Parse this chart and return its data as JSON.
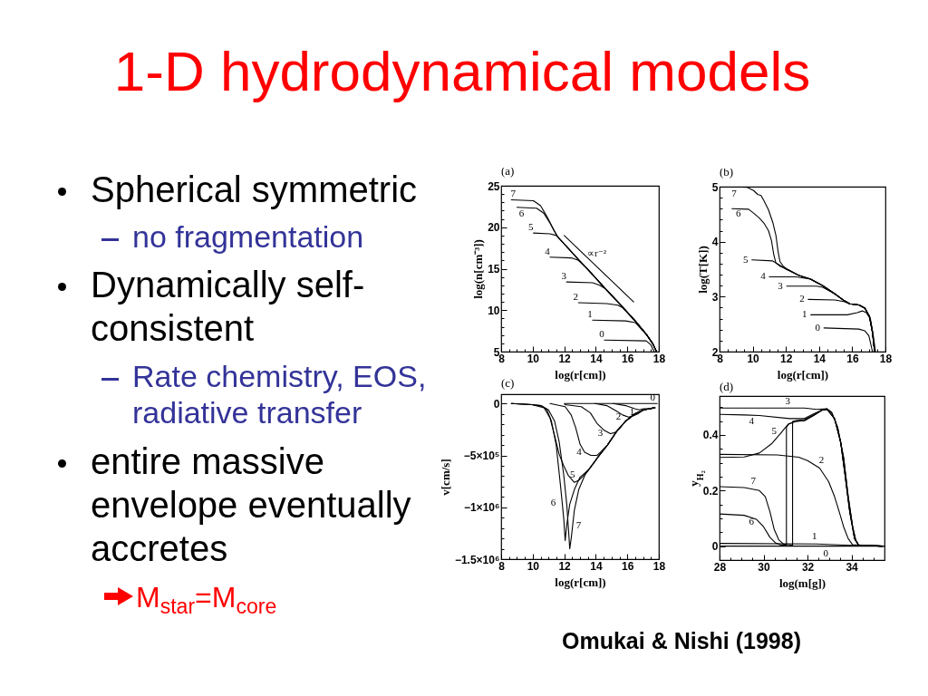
{
  "chart_data": [
    {
      "type": "other",
      "title": "1-D hydrodynamical models",
      "annotations": [
        "Spherical symmetric",
        "no fragmentation",
        "Dynamically self-consistent",
        "Rate chemistry, EOS, radiative transfer",
        "entire massive envelope eventually accretes",
        "M$_{star}$=M$_{core}$",
        "Omukai & Nishi (1998)"
      ]
    },
    {
      "type": "line",
      "title": "(a)",
      "xlabel": "log(r[cm])",
      "ylabel": "log(n[cm⁻³])",
      "xlim": [
        8,
        18
      ],
      "ylim": [
        5,
        25
      ],
      "xticks": [
        8,
        {
          "value": 8.5,
          "label": null
        },
        {
          "value": 9,
          "label": null
        },
        {
          "value": 9.5,
          "label": null
        },
        10,
        {
          "value": 10.5,
          "label": null
        },
        {
          "value": 11,
          "label": null
        },
        {
          "value": 11.5,
          "label": null
        },
        12,
        {
          "value": 12.5,
          "label": null
        },
        {
          "value": 13,
          "label": null
        },
        {
          "value": 13.5,
          "label": null
        },
        14,
        {
          "value": 14.5,
          "label": null
        },
        {
          "value": 15,
          "label": null
        },
        {
          "value": 15.5,
          "label": null
        },
        16,
        {
          "value": 16.5,
          "label": null
        },
        {
          "value": 17,
          "label": null
        },
        {
          "value": 17.5,
          "label": null
        },
        18
      ],
      "yticks": [
        5,
        {
          "value": 6,
          "label": null
        },
        {
          "value": 7,
          "label": null
        },
        {
          "value": 8,
          "label": null
        },
        {
          "value": 9,
          "label": null
        },
        10,
        {
          "value": 11,
          "label": null
        },
        {
          "value": 12,
          "label": null
        },
        {
          "value": 13,
          "label": null
        },
        {
          "value": 14,
          "label": null
        },
        15,
        {
          "value": 16,
          "label": null
        },
        {
          "value": 17,
          "label": null
        },
        {
          "value": 18,
          "label": null
        },
        {
          "value": 19,
          "label": null
        },
        20,
        {
          "value": 21,
          "label": null
        },
        {
          "value": 22,
          "label": null
        },
        {
          "value": 23,
          "label": null
        },
        {
          "value": 24,
          "label": null
        },
        25
      ],
      "series": [
        {
          "name": "0",
          "color": "#000000",
          "x": [
            14.55,
            17.2,
            17.5,
            17.7
          ],
          "values": [
            6.4,
            6.3,
            5.8,
            5.0
          ]
        },
        {
          "name": "1",
          "color": "#000000",
          "x": [
            13.8,
            15.9,
            16.5,
            17.2,
            17.6,
            17.85
          ],
          "values": [
            8.8,
            8.7,
            8.5,
            7.1,
            6.0,
            5.0
          ]
        },
        {
          "name": "2",
          "color": "#000000",
          "x": [
            12.9,
            14.7,
            15.4,
            15.7,
            16.5,
            17.2,
            17.6,
            17.85
          ],
          "values": [
            10.9,
            10.8,
            10.6,
            10.3,
            8.7,
            7.1,
            6.0,
            5.0
          ]
        },
        {
          "name": "3",
          "color": "#000000",
          "x": [
            12.15,
            13.8,
            14.25,
            14.6,
            15.4,
            16.5,
            17.2,
            17.6,
            17.85
          ],
          "values": [
            13.4,
            13.3,
            13.0,
            12.6,
            11.0,
            8.7,
            7.1,
            6.0,
            5.0
          ]
        },
        {
          "name": "4",
          "color": "#000000",
          "x": [
            11.1,
            12.45,
            12.9,
            13.5,
            14.6,
            15.4,
            16.5,
            17.2,
            17.6,
            17.85
          ],
          "values": [
            16.4,
            16.3,
            16.0,
            14.9,
            12.6,
            11.0,
            8.7,
            7.1,
            6.0,
            5.0
          ]
        },
        {
          "name": "5",
          "color": "#000000",
          "x": [
            10.05,
            11.1,
            11.5,
            12.0,
            12.9,
            13.5,
            14.6,
            15.4,
            16.5,
            17.2,
            17.6,
            17.85
          ],
          "values": [
            19.3,
            19.2,
            19.0,
            18.0,
            16.1,
            14.9,
            12.6,
            11.0,
            8.7,
            7.1,
            6.0,
            5.0
          ]
        },
        {
          "name": "6",
          "color": "#000000",
          "x": [
            9.0,
            10.25,
            10.7,
            11.1,
            11.35,
            11.6,
            12.0,
            12.9,
            13.5,
            14.6,
            15.4,
            16.5,
            17.2,
            17.6,
            17.85
          ],
          "values": [
            22.4,
            22.3,
            21.7,
            20.5,
            19.6,
            18.8,
            18.0,
            16.1,
            14.9,
            12.6,
            11.0,
            8.7,
            7.1,
            6.0,
            5.0
          ]
        },
        {
          "name": "7",
          "color": "#000000",
          "x": [
            8.65,
            10.05,
            10.5,
            10.9,
            11.2,
            11.45,
            11.6,
            12.0,
            12.9,
            13.5,
            14.6,
            15.4,
            16.5,
            17.2,
            17.6,
            17.85
          ],
          "values": [
            23.3,
            23.2,
            22.6,
            21.3,
            20.2,
            19.3,
            18.8,
            18.0,
            16.1,
            14.9,
            12.6,
            11.0,
            8.7,
            7.1,
            6.0,
            5.0
          ]
        },
        {
          "name": "∝r⁻²",
          "color": "#000000",
          "x": [
            12,
            16.4
          ],
          "values": [
            19,
            11
          ]
        }
      ]
    },
    {
      "type": "line",
      "title": "(b)",
      "xlabel": "log(r[cm])",
      "ylabel": "log(T[K])",
      "xlim": [
        8,
        18
      ],
      "ylim": [
        2,
        5
      ],
      "xticks": [
        8,
        {
          "value": 8.5,
          "label": null
        },
        {
          "value": 9,
          "label": null
        },
        {
          "value": 9.5,
          "label": null
        },
        10,
        {
          "value": 10.5,
          "label": null
        },
        {
          "value": 11,
          "label": null
        },
        {
          "value": 11.5,
          "label": null
        },
        12,
        {
          "value": 12.5,
          "label": null
        },
        {
          "value": 13,
          "label": null
        },
        {
          "value": 13.5,
          "label": null
        },
        14,
        {
          "value": 14.5,
          "label": null
        },
        {
          "value": 15,
          "label": null
        },
        {
          "value": 15.5,
          "label": null
        },
        16,
        {
          "value": 16.5,
          "label": null
        },
        {
          "value": 17,
          "label": null
        },
        {
          "value": 17.5,
          "label": null
        },
        18
      ],
      "yticks": [
        2,
        {
          "value": 2.2,
          "label": null
        },
        {
          "value": 2.4,
          "label": null
        },
        {
          "value": 2.6,
          "label": null
        },
        {
          "value": 2.8,
          "label": null
        },
        3,
        {
          "value": 3.2,
          "label": null
        },
        {
          "value": 3.4,
          "label": null
        },
        {
          "value": 3.6,
          "label": null
        },
        {
          "value": 3.8,
          "label": null
        },
        4,
        {
          "value": 4.2,
          "label": null
        },
        {
          "value": 4.4,
          "label": null
        },
        {
          "value": 4.6,
          "label": null
        },
        {
          "value": 4.8,
          "label": null
        },
        5
      ],
      "series": [
        {
          "name": "0",
          "color": "#000000",
          "x": [
            14.3,
            16.4,
            16.75,
            17.0,
            17.13,
            17.22
          ],
          "values": [
            2.43,
            2.41,
            2.38,
            2.29,
            2.12,
            2.0
          ]
        },
        {
          "name": "1",
          "color": "#000000",
          "x": [
            13.5,
            15.7,
            16.3,
            16.6,
            16.85,
            17.1,
            17.27,
            17.4
          ],
          "values": [
            2.67,
            2.67,
            2.71,
            2.74,
            2.71,
            2.59,
            2.29,
            2.0
          ]
        },
        {
          "name": "2",
          "color": "#000000",
          "x": [
            13.35,
            14.95,
            15.5,
            15.85,
            16.4,
            16.76,
            17.04,
            17.22,
            17.35
          ],
          "values": [
            2.95,
            2.94,
            2.91,
            2.87,
            2.85,
            2.79,
            2.64,
            2.35,
            2.0
          ]
        },
        {
          "name": "3",
          "color": "#000000",
          "x": [
            12.05,
            13.85,
            14.22,
            14.4,
            14.95,
            15.5,
            15.85,
            16.4,
            16.76,
            17.04,
            17.22,
            17.35
          ],
          "values": [
            3.19,
            3.19,
            3.17,
            3.14,
            3.05,
            2.93,
            2.87,
            2.85,
            2.79,
            2.64,
            2.35,
            2.0
          ]
        },
        {
          "name": "4",
          "color": "#000000",
          "x": [
            11.0,
            12.6,
            13.49,
            14.22,
            14.95,
            15.5,
            15.85,
            16.4,
            16.76,
            17.04,
            17.22,
            17.35
          ],
          "values": [
            3.36,
            3.36,
            3.32,
            3.2,
            3.05,
            2.93,
            2.87,
            2.85,
            2.79,
            2.64,
            2.35,
            2.0
          ]
        },
        {
          "name": "5",
          "color": "#000000",
          "x": [
            9.95,
            11.2,
            11.6,
            12.0,
            12.76,
            13.49,
            14.22,
            14.95,
            15.5,
            15.85,
            16.4,
            16.76,
            17.04,
            17.22,
            17.35
          ],
          "values": [
            3.67,
            3.65,
            3.58,
            3.5,
            3.39,
            3.32,
            3.2,
            3.05,
            2.93,
            2.87,
            2.85,
            2.79,
            2.64,
            2.35,
            2.0
          ]
        },
        {
          "name": "6",
          "color": "#000000",
          "x": [
            8.75,
            9.75,
            10.05,
            10.4,
            10.67,
            10.95,
            11.13,
            11.27,
            11.4,
            11.67,
            12.13,
            12.76,
            13.49,
            14.22,
            14.95,
            15.5,
            15.85,
            16.4,
            16.76,
            17.04,
            17.22,
            17.35
          ],
          "values": [
            4.6,
            4.59,
            4.52,
            4.43,
            4.34,
            4.2,
            4.02,
            3.76,
            3.61,
            3.55,
            3.49,
            3.39,
            3.32,
            3.2,
            3.05,
            2.93,
            2.87,
            2.85,
            2.79,
            2.64,
            2.35,
            2.0
          ]
        },
        {
          "name": "7",
          "color": "#000000",
          "x": [
            8.6,
            9.65,
            10.05,
            10.3,
            10.5,
            10.67,
            10.95,
            11.22,
            11.4,
            11.53,
            11.64,
            11.85,
            12.13,
            12.76,
            13.49,
            14.22,
            14.95,
            15.5,
            15.85,
            16.4,
            16.76,
            17.04,
            17.22,
            17.35
          ],
          "values": [
            5.0,
            4.99,
            4.93,
            4.86,
            4.84,
            4.75,
            4.58,
            4.34,
            4.11,
            3.82,
            3.64,
            3.55,
            3.49,
            3.39,
            3.32,
            3.2,
            3.05,
            2.93,
            2.87,
            2.85,
            2.79,
            2.64,
            2.35,
            2.0
          ]
        }
      ]
    },
    {
      "type": "line",
      "title": "(c)",
      "xlabel": "log(r[cm])",
      "ylabel": "v[cm/s]",
      "xlim": [
        8,
        18
      ],
      "ylim": [
        -1500000,
        90000
      ],
      "xticks": [
        8,
        {
          "value": 8.5,
          "label": null
        },
        {
          "value": 9,
          "label": null
        },
        {
          "value": 9.5,
          "label": null
        },
        10,
        {
          "value": 10.5,
          "label": null
        },
        {
          "value": 11,
          "label": null
        },
        {
          "value": 11.5,
          "label": null
        },
        12,
        {
          "value": 12.5,
          "label": null
        },
        {
          "value": 13,
          "label": null
        },
        {
          "value": 13.5,
          "label": null
        },
        14,
        {
          "value": 14.5,
          "label": null
        },
        {
          "value": 15,
          "label": null
        },
        {
          "value": 15.5,
          "label": null
        },
        16,
        {
          "value": 16.5,
          "label": null
        },
        {
          "value": 17,
          "label": null
        },
        {
          "value": 17.5,
          "label": null
        },
        18
      ],
      "yticks": [
        {
          "value": -1500000,
          "label": "−1.5×10⁶"
        },
        {
          "value": -1400000,
          "label": null
        },
        {
          "value": -1300000,
          "label": null
        },
        {
          "value": -1200000,
          "label": null
        },
        {
          "value": -1100000,
          "label": null
        },
        {
          "value": -1000000,
          "label": "−1×10⁶"
        },
        {
          "value": -900000,
          "label": null
        },
        {
          "value": -800000,
          "label": null
        },
        {
          "value": -700000,
          "label": null
        },
        {
          "value": -600000,
          "label": null
        },
        {
          "value": -500000,
          "label": "−5×10⁵"
        },
        {
          "value": -400000,
          "label": null
        },
        {
          "value": -300000,
          "label": null
        },
        {
          "value": -200000,
          "label": null
        },
        {
          "value": -100000,
          "label": null
        },
        0
      ],
      "series": [
        {
          "name": "0",
          "color": "#000000",
          "x": [
            12.0,
            17.9
          ],
          "values": [
            0,
            0
          ]
        },
        {
          "name": "1",
          "color": "#000000",
          "x": [
            15.1,
            15.9,
            16.47,
            16.74,
            17.04,
            17.4,
            17.75
          ],
          "values": [
            0,
            -20000,
            -50000,
            -60000,
            -50000,
            -50000,
            -40000
          ]
        },
        {
          "name": "2",
          "color": "#000000",
          "x": [
            13.95,
            14.7,
            15.28,
            15.7,
            16.08,
            16.36,
            16.66,
            17.04,
            17.75
          ],
          "values": [
            0,
            -20000,
            -70000,
            -110000,
            -130000,
            -120000,
            -100000,
            -60000,
            -40000
          ]
        },
        {
          "name": "3",
          "color": "#000000",
          "x": [
            12.03,
            13.08,
            13.66,
            14.07,
            14.55,
            14.93,
            15.21,
            15.5,
            15.89,
            16.47,
            17.04,
            17.75
          ],
          "values": [
            -10000,
            -30000,
            -90000,
            -190000,
            -260000,
            -290000,
            -280000,
            -240000,
            -170000,
            -100000,
            -60000,
            -40000
          ]
        },
        {
          "name": "4",
          "color": "#000000",
          "x": [
            11.1,
            12.06,
            12.44,
            12.72,
            13.0,
            13.29,
            13.69,
            14.07,
            14.36,
            14.74,
            15.32,
            15.89,
            16.47,
            17.04,
            17.75
          ],
          "values": [
            0,
            -30000,
            -110000,
            -230000,
            -390000,
            -470000,
            -500000,
            -500000,
            -460000,
            -400000,
            -270000,
            -170000,
            -100000,
            -60000,
            -40000
          ]
        },
        {
          "name": "5",
          "color": "#000000",
          "x": [
            8.65,
            9.95,
            10.72,
            11.1,
            11.39,
            11.68,
            11.97,
            12.25,
            12.64,
            12.92,
            13.2,
            13.59,
            14.17,
            14.74,
            15.32,
            15.89,
            16.47,
            17.04,
            17.75
          ],
          "values": [
            0,
            -10000,
            -40000,
            -140000,
            -310000,
            -490000,
            -600000,
            -690000,
            -760000,
            -740000,
            -700000,
            -630000,
            -510000,
            -400000,
            -270000,
            -170000,
            -100000,
            -60000,
            -40000
          ]
        },
        {
          "name": "6",
          "color": "#000000",
          "x": [
            8.65,
            9.95,
            10.53,
            10.9,
            11.19,
            11.49,
            11.77,
            11.97,
            12.06,
            12.16,
            12.35,
            12.64,
            13.0,
            13.38,
            13.59,
            14.17,
            14.74,
            15.32,
            15.89,
            16.47,
            17.04,
            17.75
          ],
          "values": [
            0,
            -10000,
            -20000,
            -60000,
            -170000,
            -400000,
            -800000,
            -1110000,
            -1320000,
            -1170000,
            -970000,
            -830000,
            -710000,
            -660000,
            -630000,
            -510000,
            -400000,
            -270000,
            -170000,
            -100000,
            -60000,
            -40000
          ]
        },
        {
          "name": "7",
          "color": "#000000",
          "x": [
            8.65,
            9.95,
            10.53,
            11.0,
            11.39,
            11.68,
            11.97,
            12.16,
            12.25,
            12.35,
            12.45,
            12.64,
            12.92,
            13.31,
            13.79,
            14.17,
            14.74,
            15.32,
            15.89,
            16.47,
            17.04,
            17.75
          ],
          "values": [
            0,
            -10000,
            -20000,
            -60000,
            -170000,
            -370000,
            -690000,
            -970000,
            -1170000,
            -1400000,
            -1290000,
            -1030000,
            -830000,
            -690000,
            -590000,
            -510000,
            -400000,
            -270000,
            -170000,
            -100000,
            -60000,
            -40000
          ]
        }
      ]
    },
    {
      "type": "line",
      "title": "(d)",
      "xlabel": "log(m[g])",
      "ylabel": "y$_{H₂}$",
      "xlim": [
        28,
        35.5
      ],
      "ylim": [
        -0.05,
        0.54
      ],
      "xticks": [
        28,
        {
          "value": 28.5,
          "label": null
        },
        {
          "value": 29,
          "label": null
        },
        {
          "value": 29.5,
          "label": null
        },
        30,
        {
          "value": 30.5,
          "label": null
        },
        {
          "value": 31,
          "label": null
        },
        {
          "value": 31.5,
          "label": null
        },
        32,
        {
          "value": 32.5,
          "label": null
        },
        {
          "value": 33,
          "label": null
        },
        {
          "value": 33.5,
          "label": null
        },
        34,
        {
          "value": 34.5,
          "label": null
        },
        {
          "value": 35,
          "label": null
        }
      ],
      "yticks": [
        {
          "value": -0.05,
          "label": null
        },
        0,
        {
          "value": 0.05,
          "label": null
        },
        {
          "value": 0.1,
          "label": null
        },
        {
          "value": 0.15,
          "label": null
        },
        0.2,
        {
          "value": 0.25,
          "label": null
        },
        {
          "value": 0.3,
          "label": null
        },
        {
          "value": 0.35,
          "label": null
        },
        0.4,
        {
          "value": 0.45,
          "label": null
        },
        {
          "value": 0.5,
          "label": null
        }
      ],
      "series": [
        {
          "name": "0",
          "color": "#000000",
          "x": [
            28,
            32.5,
            35.5
          ],
          "values": [
            0,
            0,
            0
          ]
        },
        {
          "name": "1",
          "color": "#000000",
          "x": [
            28,
            32.4,
            34.05,
            35.5
          ],
          "values": [
            0.01,
            0.008,
            0.003,
            0
          ]
        },
        {
          "name": "2",
          "color": "#000000",
          "x": [
            28,
            30.63,
            31.6,
            32.0,
            32.55,
            32.96,
            33.23,
            33.44,
            33.64,
            33.85,
            34.05,
            35.4
          ],
          "values": [
            0.33,
            0.328,
            0.32,
            0.308,
            0.281,
            0.232,
            0.178,
            0.124,
            0.07,
            0.027,
            0.005,
            0
          ]
        },
        {
          "name": "3",
          "color": "#000000",
          "x": [
            28,
            31.1,
            31.86,
            32.41,
            32.89,
            33.1,
            33.37,
            33.64,
            33.85,
            34.05,
            34.19,
            34.33,
            35.4
          ],
          "values": [
            0.497,
            0.497,
            0.497,
            0.492,
            0.494,
            0.481,
            0.427,
            0.319,
            0.178,
            0.07,
            0.022,
            0.003,
            0
          ]
        },
        {
          "name": "4",
          "color": "#000000",
          "x": [
            28,
            29.12,
            29.81,
            31.18,
            31.86,
            32.27,
            32.68,
            32.89,
            33.1,
            33.37,
            33.64,
            33.85,
            34.05,
            34.19,
            34.33,
            35.4
          ],
          "values": [
            0.474,
            0.472,
            0.47,
            0.459,
            0.459,
            0.476,
            0.49,
            0.494,
            0.481,
            0.427,
            0.319,
            0.178,
            0.07,
            0.022,
            0.003,
            0
          ]
        },
        {
          "name": "5",
          "color": "#000000",
          "x": [
            28,
            29.12,
            29.81,
            30.36,
            30.77,
            31.11,
            31.45,
            31.86,
            32.27,
            32.68,
            32.89,
            33.23,
            33.51,
            33.71,
            33.92,
            34.14,
            34.33,
            35.4
          ],
          "values": [
            0.319,
            0.321,
            0.335,
            0.368,
            0.405,
            0.438,
            0.449,
            0.451,
            0.47,
            0.49,
            0.492,
            0.459,
            0.373,
            0.254,
            0.124,
            0.027,
            0.003,
            0
          ]
        },
        {
          "name": "6",
          "color": "#000000",
          "x": [
            28,
            29.12,
            29.67,
            30.0,
            30.29,
            30.56,
            30.77,
            31.04,
            31.04,
            31.15,
            31.45,
            31.86,
            32.27,
            32.68,
            32.89,
            33.23,
            33.51,
            33.71,
            33.92,
            34.14,
            34.33,
            35.4
          ],
          "values": [
            0.116,
            0.111,
            0.097,
            0.07,
            0.032,
            0.011,
            0.005,
            0.003,
            0.427,
            0.44,
            0.449,
            0.452,
            0.47,
            0.49,
            0.492,
            0.459,
            0.373,
            0.254,
            0.124,
            0.027,
            0.003,
            0
          ]
        },
        {
          "name": "7",
          "color": "#000000",
          "x": [
            28,
            29.12,
            29.81,
            30.08,
            30.29,
            30.49,
            30.7,
            30.9,
            31.32,
            31.32,
            31.5,
            31.86,
            32.27,
            32.68,
            32.89,
            33.23,
            33.51,
            33.71,
            33.92,
            34.14,
            34.33,
            35.4
          ],
          "values": [
            0.214,
            0.211,
            0.2,
            0.178,
            0.124,
            0.059,
            0.022,
            0.008,
            0.003,
            0.449,
            0.452,
            0.455,
            0.472,
            0.49,
            0.492,
            0.459,
            0.373,
            0.254,
            0.124,
            0.027,
            0.003,
            0
          ]
        }
      ]
    }
  ]
}
